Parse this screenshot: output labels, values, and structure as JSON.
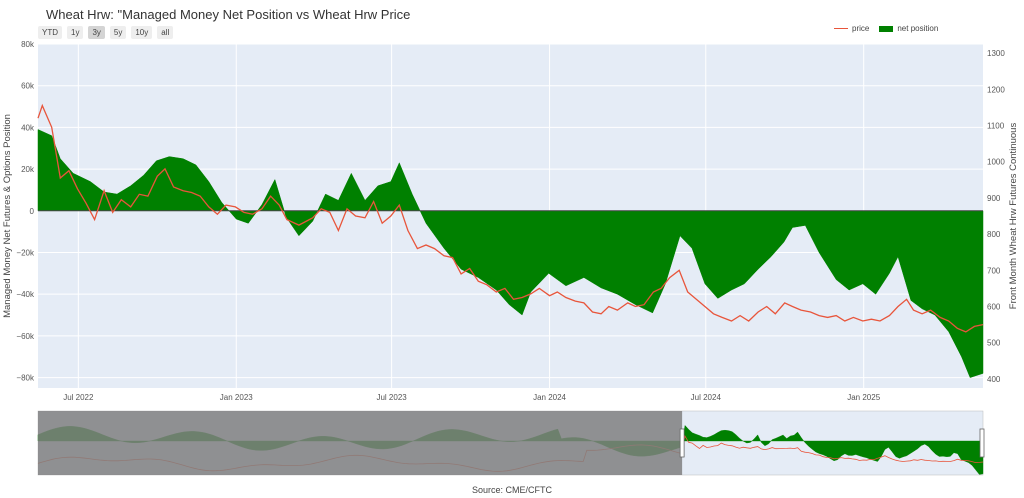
{
  "title": "Wheat Hrw: \"Managed Money Net Position vs Wheat Hrw Price",
  "source": "Source: CME/CFTC",
  "range_buttons": [
    {
      "label": "YTD",
      "active": false
    },
    {
      "label": "1y",
      "active": false
    },
    {
      "label": "3y",
      "active": true
    },
    {
      "label": "5y",
      "active": false
    },
    {
      "label": "10y",
      "active": false
    },
    {
      "label": "all",
      "active": false
    }
  ],
  "legend": [
    {
      "label": "price",
      "type": "line"
    },
    {
      "label": "net position",
      "type": "fill"
    }
  ],
  "colors": {
    "price": "#e8553b",
    "net_position": "#008000",
    "plot_bg": "#e5ecf6",
    "range_dim": "#808080",
    "range_net": "#0b5a0b"
  },
  "chart_data": {
    "type": "area",
    "x_range": [
      "2022-05-15",
      "2025-05-20"
    ],
    "y_left": {
      "label": "Managed Money Net Futures & Options Position",
      "range": [
        -85000,
        80000
      ],
      "ticks": [
        {
          "v": 80000,
          "label": "80k"
        },
        {
          "v": 60000,
          "label": "60k"
        },
        {
          "v": 40000,
          "label": "40k"
        },
        {
          "v": 20000,
          "label": "20k"
        },
        {
          "v": 0,
          "label": "0"
        },
        {
          "v": -20000,
          "label": "−20k"
        },
        {
          "v": -40000,
          "label": "−40k"
        },
        {
          "v": -60000,
          "label": "−60k"
        },
        {
          "v": -80000,
          "label": "−80k"
        }
      ]
    },
    "y_right": {
      "label": "Front Month Wheat Hrw Futures Continuous",
      "range": [
        375,
        1325
      ],
      "ticks": [
        400,
        500,
        600,
        700,
        800,
        900,
        1000,
        1100,
        1200,
        1300
      ]
    },
    "x_ticks": [
      {
        "date": "2022-07-01",
        "label": "Jul 2022"
      },
      {
        "date": "2023-01-01",
        "label": "Jan 2023"
      },
      {
        "date": "2023-07-01",
        "label": "Jul 2023"
      },
      {
        "date": "2024-01-01",
        "label": "Jan 2024"
      },
      {
        "date": "2024-07-01",
        "label": "Jul 2024"
      },
      {
        "date": "2025-01-01",
        "label": "Jan 2025"
      }
    ],
    "series": [
      {
        "name": "net position",
        "axis": "left",
        "points": [
          [
            "2022-05-15",
            39000
          ],
          [
            "2022-05-31",
            36000
          ],
          [
            "2022-06-10",
            25000
          ],
          [
            "2022-06-25",
            18000
          ],
          [
            "2022-07-15",
            14000
          ],
          [
            "2022-07-31",
            9000
          ],
          [
            "2022-08-15",
            8000
          ],
          [
            "2022-08-31",
            12000
          ],
          [
            "2022-09-15",
            17000
          ],
          [
            "2022-09-30",
            24000
          ],
          [
            "2022-10-15",
            26000
          ],
          [
            "2022-10-31",
            25000
          ],
          [
            "2022-11-15",
            22000
          ],
          [
            "2022-11-30",
            14000
          ],
          [
            "2022-12-15",
            4000
          ],
          [
            "2023-01-01",
            -4000
          ],
          [
            "2023-01-15",
            -6000
          ],
          [
            "2023-01-31",
            3000
          ],
          [
            "2023-02-15",
            15000
          ],
          [
            "2023-02-28",
            -3000
          ],
          [
            "2023-03-15",
            -12000
          ],
          [
            "2023-03-31",
            -5000
          ],
          [
            "2023-04-15",
            8000
          ],
          [
            "2023-04-30",
            5000
          ],
          [
            "2023-05-15",
            18000
          ],
          [
            "2023-05-31",
            5000
          ],
          [
            "2023-06-15",
            12000
          ],
          [
            "2023-06-30",
            14000
          ],
          [
            "2023-07-10",
            23000
          ],
          [
            "2023-07-25",
            8000
          ],
          [
            "2023-08-10",
            -6000
          ],
          [
            "2023-08-31",
            -18000
          ],
          [
            "2023-09-20",
            -28000
          ],
          [
            "2023-10-10",
            -32000
          ],
          [
            "2023-10-31",
            -38000
          ],
          [
            "2023-11-15",
            -45000
          ],
          [
            "2023-11-30",
            -50000
          ],
          [
            "2023-12-10",
            -39000
          ],
          [
            "2023-12-31",
            -30000
          ],
          [
            "2024-01-20",
            -36000
          ],
          [
            "2024-02-10",
            -32000
          ],
          [
            "2024-03-01",
            -37000
          ],
          [
            "2024-03-20",
            -40000
          ],
          [
            "2024-04-10",
            -45000
          ],
          [
            "2024-04-30",
            -49000
          ],
          [
            "2024-05-15",
            -35000
          ],
          [
            "2024-06-01",
            -12000
          ],
          [
            "2024-06-15",
            -18000
          ],
          [
            "2024-06-30",
            -35000
          ],
          [
            "2024-07-15",
            -42000
          ],
          [
            "2024-07-31",
            -38000
          ],
          [
            "2024-08-15",
            -35000
          ],
          [
            "2024-08-31",
            -28000
          ],
          [
            "2024-09-15",
            -22000
          ],
          [
            "2024-09-30",
            -15000
          ],
          [
            "2024-10-10",
            -8000
          ],
          [
            "2024-10-25",
            -7000
          ],
          [
            "2024-11-10",
            -20000
          ],
          [
            "2024-11-30",
            -33000
          ],
          [
            "2024-12-15",
            -38000
          ],
          [
            "2024-12-31",
            -35000
          ],
          [
            "2025-01-15",
            -40000
          ],
          [
            "2025-01-31",
            -30000
          ],
          [
            "2025-02-10",
            -22000
          ],
          [
            "2025-02-25",
            -43000
          ],
          [
            "2025-03-10",
            -47000
          ],
          [
            "2025-03-25",
            -50000
          ],
          [
            "2025-04-10",
            -58000
          ],
          [
            "2025-04-25",
            -70000
          ],
          [
            "2025-05-05",
            -80000
          ],
          [
            "2025-05-20",
            -78000
          ]
        ]
      },
      {
        "name": "price",
        "axis": "right",
        "points": [
          [
            "2022-05-15",
            1120
          ],
          [
            "2022-05-20",
            1155
          ],
          [
            "2022-05-31",
            1095
          ],
          [
            "2022-06-10",
            955
          ],
          [
            "2022-06-20",
            975
          ],
          [
            "2022-06-30",
            925
          ],
          [
            "2022-07-10",
            885
          ],
          [
            "2022-07-20",
            840
          ],
          [
            "2022-07-31",
            920
          ],
          [
            "2022-08-10",
            860
          ],
          [
            "2022-08-20",
            895
          ],
          [
            "2022-08-31",
            875
          ],
          [
            "2022-09-10",
            910
          ],
          [
            "2022-09-20",
            905
          ],
          [
            "2022-10-01",
            960
          ],
          [
            "2022-10-10",
            980
          ],
          [
            "2022-10-20",
            930
          ],
          [
            "2022-10-31",
            920
          ],
          [
            "2022-11-10",
            915
          ],
          [
            "2022-11-20",
            905
          ],
          [
            "2022-11-30",
            875
          ],
          [
            "2022-12-10",
            855
          ],
          [
            "2022-12-20",
            880
          ],
          [
            "2022-12-31",
            875
          ],
          [
            "2023-01-10",
            860
          ],
          [
            "2023-01-20",
            855
          ],
          [
            "2023-01-31",
            870
          ],
          [
            "2023-02-10",
            905
          ],
          [
            "2023-02-20",
            880
          ],
          [
            "2023-03-01",
            840
          ],
          [
            "2023-03-15",
            825
          ],
          [
            "2023-03-31",
            845
          ],
          [
            "2023-04-10",
            870
          ],
          [
            "2023-04-20",
            860
          ],
          [
            "2023-04-30",
            810
          ],
          [
            "2023-05-10",
            870
          ],
          [
            "2023-05-20",
            850
          ],
          [
            "2023-05-31",
            845
          ],
          [
            "2023-06-10",
            890
          ],
          [
            "2023-06-20",
            830
          ],
          [
            "2023-06-30",
            850
          ],
          [
            "2023-07-10",
            880
          ],
          [
            "2023-07-20",
            810
          ],
          [
            "2023-07-31",
            760
          ],
          [
            "2023-08-10",
            770
          ],
          [
            "2023-08-20",
            760
          ],
          [
            "2023-08-31",
            740
          ],
          [
            "2023-09-10",
            735
          ],
          [
            "2023-09-20",
            690
          ],
          [
            "2023-09-30",
            705
          ],
          [
            "2023-10-10",
            670
          ],
          [
            "2023-10-20",
            660
          ],
          [
            "2023-10-31",
            640
          ],
          [
            "2023-11-10",
            650
          ],
          [
            "2023-11-20",
            620
          ],
          [
            "2023-11-30",
            625
          ],
          [
            "2023-12-10",
            635
          ],
          [
            "2023-12-20",
            650
          ],
          [
            "2024-01-01",
            630
          ],
          [
            "2024-01-10",
            640
          ],
          [
            "2024-01-20",
            625
          ],
          [
            "2024-01-31",
            615
          ],
          [
            "2024-02-10",
            610
          ],
          [
            "2024-02-20",
            585
          ],
          [
            "2024-03-01",
            580
          ],
          [
            "2024-03-10",
            600
          ],
          [
            "2024-03-20",
            590
          ],
          [
            "2024-04-01",
            610
          ],
          [
            "2024-04-10",
            600
          ],
          [
            "2024-04-20",
            605
          ],
          [
            "2024-05-01",
            640
          ],
          [
            "2024-05-10",
            650
          ],
          [
            "2024-05-20",
            680
          ],
          [
            "2024-05-31",
            700
          ],
          [
            "2024-06-10",
            640
          ],
          [
            "2024-06-20",
            620
          ],
          [
            "2024-06-30",
            600
          ],
          [
            "2024-07-10",
            580
          ],
          [
            "2024-07-20",
            570
          ],
          [
            "2024-07-31",
            560
          ],
          [
            "2024-08-10",
            575
          ],
          [
            "2024-08-20",
            560
          ],
          [
            "2024-08-31",
            585
          ],
          [
            "2024-09-10",
            600
          ],
          [
            "2024-09-20",
            580
          ],
          [
            "2024-10-01",
            610
          ],
          [
            "2024-10-10",
            600
          ],
          [
            "2024-10-20",
            590
          ],
          [
            "2024-10-31",
            585
          ],
          [
            "2024-11-10",
            575
          ],
          [
            "2024-11-20",
            570
          ],
          [
            "2024-11-30",
            575
          ],
          [
            "2024-12-10",
            560
          ],
          [
            "2024-12-20",
            570
          ],
          [
            "2024-12-31",
            560
          ],
          [
            "2025-01-10",
            565
          ],
          [
            "2025-01-20",
            560
          ],
          [
            "2025-01-31",
            575
          ],
          [
            "2025-02-10",
            600
          ],
          [
            "2025-02-20",
            620
          ],
          [
            "2025-02-28",
            590
          ],
          [
            "2025-03-10",
            580
          ],
          [
            "2025-03-20",
            590
          ],
          [
            "2025-03-31",
            570
          ],
          [
            "2025-04-10",
            560
          ],
          [
            "2025-04-20",
            540
          ],
          [
            "2025-04-30",
            530
          ],
          [
            "2025-05-10",
            545
          ],
          [
            "2025-05-20",
            550
          ]
        ]
      }
    ],
    "range_slider": {
      "x_range": [
        "2015-12-01",
        "2025-05-20"
      ],
      "selected": [
        "2022-05-15",
        "2025-05-20"
      ]
    }
  }
}
